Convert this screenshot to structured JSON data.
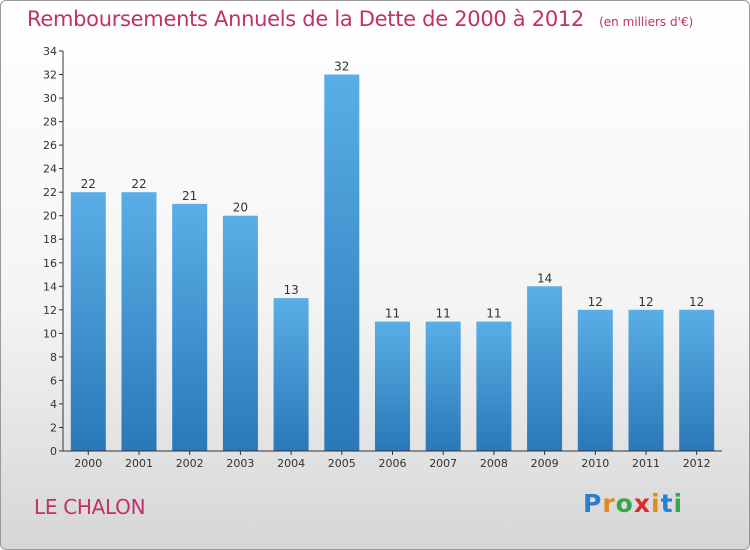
{
  "chart_data": {
    "type": "bar",
    "title": "Remboursements Annuels de la Dette de 2000 à 2012",
    "unit": "(en milliers d'€)",
    "categories": [
      "2000",
      "2001",
      "2002",
      "2003",
      "2004",
      "2005",
      "2006",
      "2007",
      "2008",
      "2009",
      "2010",
      "2011",
      "2012"
    ],
    "values": [
      22,
      22,
      21,
      20,
      13,
      32,
      11,
      11,
      11,
      14,
      12,
      12,
      12
    ],
    "xlabel": "",
    "ylabel": "",
    "ylim": [
      0,
      34
    ],
    "yticks": [
      0,
      2,
      4,
      6,
      8,
      10,
      12,
      14,
      16,
      18,
      20,
      22,
      24,
      26,
      28,
      30,
      32,
      34
    ],
    "grid": false,
    "bar_color_top": "#5aaee6",
    "bar_color_bottom": "#2a78b8"
  },
  "footer": {
    "city": "LE CHALON",
    "brand_letters": [
      "P",
      "r",
      "o",
      "x",
      "i",
      "t",
      "i"
    ]
  },
  "colors": {
    "title": "#c0306a",
    "axis": "#333333"
  }
}
